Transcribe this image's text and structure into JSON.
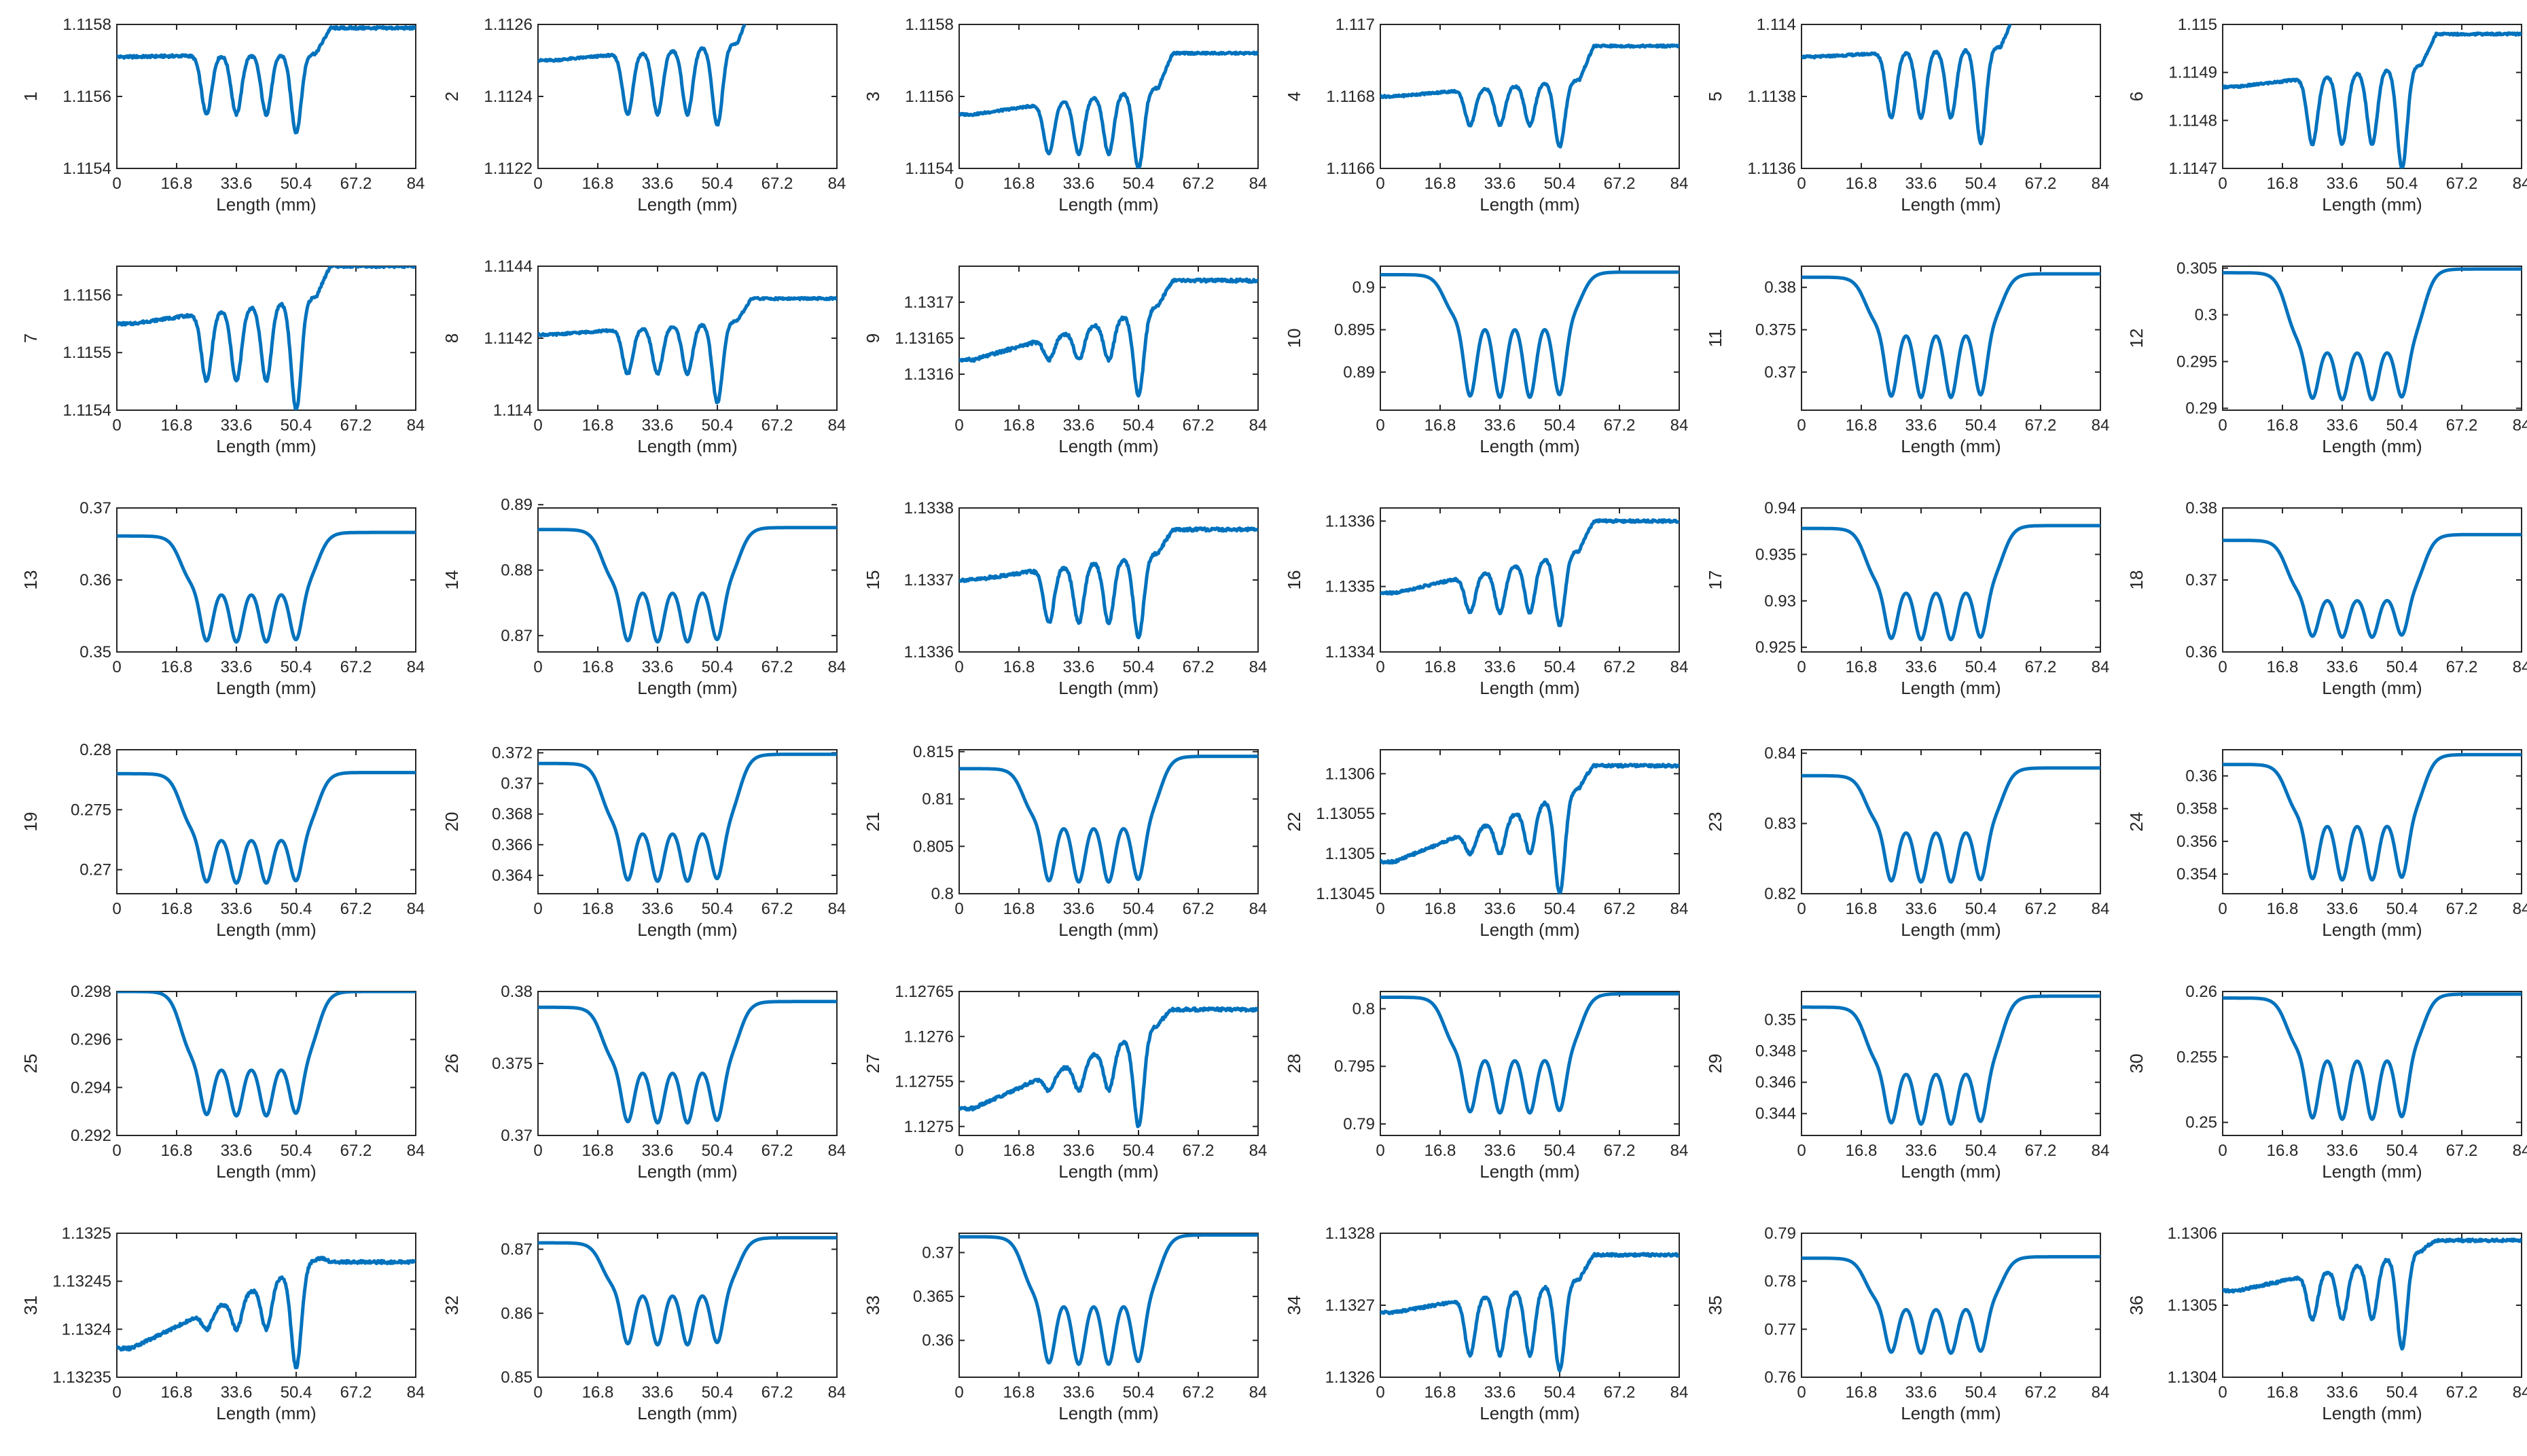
{
  "x_axis": {
    "label": "Length (mm)",
    "ticks": [
      0,
      16.8,
      33.6,
      50.4,
      67.2,
      84
    ],
    "tick_labels": [
      "0",
      "16.8",
      "33.6",
      "50.4",
      "67.2",
      "84"
    ],
    "range": [
      0,
      84
    ]
  },
  "line_color": "#0072BD",
  "chart_data": [
    {
      "type": "line",
      "ylabel": "1",
      "ylim": [
        1.1154,
        1.1158
      ],
      "yticks": [
        "1.1154",
        "1.1156",
        "1.1158"
      ],
      "baseline_left": 1.11571,
      "baseline_right": 1.11579,
      "peak_y": 1.11572,
      "trough_y": 1.11555,
      "last_trough_y": 1.1155,
      "trend": "flat",
      "noise": 0.05
    },
    {
      "type": "line",
      "ylabel": "2",
      "ylim": [
        1.1122,
        1.1126
      ],
      "yticks": [
        "1.1122",
        "1.1124",
        "1.1126"
      ],
      "baseline_left": 1.1125,
      "baseline_right": 1.11265,
      "peak_y": 1.11255,
      "trough_y": 1.11235,
      "last_trough_y": 1.11232,
      "trend": "rising",
      "noise": 0.04
    },
    {
      "type": "line",
      "ylabel": "3",
      "ylim": [
        1.1154,
        1.1158
      ],
      "yticks": [
        "1.1154",
        "1.1156",
        "1.1158"
      ],
      "baseline_left": 1.11555,
      "baseline_right": 1.11572,
      "peak_y": 1.11563,
      "trough_y": 1.11544,
      "last_trough_y": 1.1154,
      "trend": "rising",
      "noise": 0.04
    },
    {
      "type": "line",
      "ylabel": "4",
      "ylim": [
        1.1166,
        1.117
      ],
      "yticks": [
        "1.1166",
        "1.1168",
        "1.117"
      ],
      "baseline_left": 1.1168,
      "baseline_right": 1.11694,
      "peak_y": 1.11685,
      "trough_y": 1.11672,
      "last_trough_y": 1.11666,
      "trend": "rising",
      "noise": 0.04
    },
    {
      "type": "line",
      "ylabel": "5",
      "ylim": [
        1.1136,
        1.114
      ],
      "yticks": [
        "1.1136",
        "1.1138",
        "1.114"
      ],
      "baseline_left": 1.11391,
      "baseline_right": 1.11403,
      "peak_y": 1.11394,
      "trough_y": 1.11374,
      "last_trough_y": 1.11367,
      "trend": "flat",
      "noise": 0.04
    },
    {
      "type": "line",
      "ylabel": "6",
      "ylim": [
        1.1147,
        1.115
      ],
      "yticks": [
        "1.1147",
        "1.1148",
        "1.1149",
        "1.115"
      ],
      "baseline_left": 1.11487,
      "baseline_right": 1.11498,
      "peak_y": 1.11492,
      "trough_y": 1.11475,
      "last_trough_y": 1.1147,
      "trend": "flat",
      "noise": 0.04
    },
    {
      "type": "line",
      "ylabel": "7",
      "ylim": [
        1.1154,
        1.11565
      ],
      "yticks": [
        "1.1154",
        "1.1155",
        "1.1156"
      ],
      "baseline_left": 1.11555,
      "baseline_right": 1.11565,
      "peak_y": 1.1156,
      "trough_y": 1.11545,
      "last_trough_y": 1.1154,
      "trend": "rising",
      "noise": 0.05
    },
    {
      "type": "line",
      "ylabel": "8",
      "ylim": [
        1.114,
        1.1144
      ],
      "yticks": [
        "1.114",
        "1.1142",
        "1.1144"
      ],
      "baseline_left": 1.11421,
      "baseline_right": 1.11431,
      "peak_y": 1.11425,
      "trough_y": 1.1141,
      "last_trough_y": 1.11402,
      "trend": "flat",
      "noise": 0.04
    },
    {
      "type": "line",
      "ylabel": "9",
      "ylim": [
        1.13155,
        1.13175
      ],
      "yticks": [
        "1.1316",
        "1.13165",
        "1.1317"
      ],
      "baseline_left": 1.13162,
      "baseline_right": 1.13173,
      "peak_y": 1.1317,
      "trough_y": 1.13162,
      "last_trough_y": 1.13157,
      "trend": "rising",
      "noise": 0.06
    },
    {
      "type": "line",
      "ylabel": "10",
      "ylim": [
        0.8855,
        0.9025
      ],
      "yticks": [
        "0.89",
        "0.895",
        "0.9"
      ],
      "baseline_left": 0.9015,
      "baseline_right": 0.9018,
      "peak_y": 0.8945,
      "trough_y": 0.8857,
      "last_trough_y": 0.8857,
      "trend": "smooth",
      "noise": 0.005
    },
    {
      "type": "line",
      "ylabel": "11",
      "ylim": [
        0.3655,
        0.3825
      ],
      "yticks": [
        "0.37",
        "0.375",
        "0.38"
      ],
      "baseline_left": 0.3812,
      "baseline_right": 0.3816,
      "peak_y": 0.3738,
      "trough_y": 0.3658,
      "last_trough_y": 0.3658,
      "trend": "smooth",
      "noise": 0.005
    },
    {
      "type": "line",
      "ylabel": "12",
      "ylim": [
        0.2898,
        0.3052
      ],
      "yticks": [
        "0.29",
        "0.295",
        "0.3",
        "0.305"
      ],
      "baseline_left": 0.3045,
      "baseline_right": 0.3049,
      "peak_y": 0.2956,
      "trough_y": 0.2901,
      "last_trough_y": 0.2901,
      "trend": "smooth",
      "noise": 0.005
    },
    {
      "type": "line",
      "ylabel": "13",
      "ylim": [
        0.35,
        0.37
      ],
      "yticks": [
        "0.35",
        "0.36",
        "0.37"
      ],
      "baseline_left": 0.3661,
      "baseline_right": 0.3666,
      "peak_y": 0.3575,
      "trough_y": 0.3503,
      "last_trough_y": 0.3503,
      "trend": "smooth",
      "noise": 0.005
    },
    {
      "type": "line",
      "ylabel": "14",
      "ylim": [
        0.8675,
        0.8895
      ],
      "yticks": [
        "0.87",
        "0.88",
        "0.89"
      ],
      "baseline_left": 0.8862,
      "baseline_right": 0.8865,
      "peak_y": 0.876,
      "trough_y": 0.8678,
      "last_trough_y": 0.8678,
      "trend": "smooth",
      "noise": 0.005
    },
    {
      "type": "line",
      "ylabel": "15",
      "ylim": [
        1.1336,
        1.1338
      ],
      "yticks": [
        "1.1336",
        "1.1337",
        "1.1338"
      ],
      "baseline_left": 1.1337,
      "baseline_right": 1.13377,
      "peak_y": 1.13374,
      "trough_y": 1.13364,
      "last_trough_y": 1.13362,
      "trend": "rising",
      "noise": 0.06
    },
    {
      "type": "line",
      "ylabel": "16",
      "ylim": [
        1.1334,
        1.13362
      ],
      "yticks": [
        "1.1334",
        "1.1335",
        "1.1336"
      ],
      "baseline_left": 1.13349,
      "baseline_right": 1.1336,
      "peak_y": 1.13356,
      "trough_y": 1.13346,
      "last_trough_y": 1.13344,
      "trend": "rising",
      "noise": 0.05
    },
    {
      "type": "line",
      "ylabel": "17",
      "ylim": [
        0.9245,
        0.94
      ],
      "yticks": [
        "0.925",
        "0.93",
        "0.935",
        "0.94"
      ],
      "baseline_left": 0.9378,
      "baseline_right": 0.9381,
      "peak_y": 0.9305,
      "trough_y": 0.925,
      "last_trough_y": 0.925,
      "trend": "smooth",
      "noise": 0.005
    },
    {
      "type": "line",
      "ylabel": "18",
      "ylim": [
        0.36,
        0.38
      ],
      "yticks": [
        "0.36",
        "0.37",
        "0.38"
      ],
      "baseline_left": 0.3755,
      "baseline_right": 0.3763,
      "peak_y": 0.3668,
      "trough_y": 0.3612,
      "last_trough_y": 0.3612,
      "trend": "smooth",
      "noise": 0.005
    },
    {
      "type": "line",
      "ylabel": "19",
      "ylim": [
        0.268,
        0.28
      ],
      "yticks": [
        "0.27",
        "0.275",
        "0.28"
      ],
      "baseline_left": 0.278,
      "baseline_right": 0.2781,
      "peak_y": 0.2722,
      "trough_y": 0.2683,
      "last_trough_y": 0.2683,
      "trend": "smooth",
      "noise": 0.005
    },
    {
      "type": "line",
      "ylabel": "20",
      "ylim": [
        0.3628,
        0.3722
      ],
      "yticks": [
        "0.364",
        "0.366",
        "0.368",
        "0.37",
        "0.372"
      ],
      "baseline_left": 0.3713,
      "baseline_right": 0.3719,
      "peak_y": 0.3665,
      "trough_y": 0.3631,
      "last_trough_y": 0.3631,
      "trend": "smooth",
      "noise": 0.005
    },
    {
      "type": "line",
      "ylabel": "21",
      "ylim": [
        0.8,
        0.8152
      ],
      "yticks": [
        "0.8",
        "0.805",
        "0.81",
        "0.815"
      ],
      "baseline_left": 0.8132,
      "baseline_right": 0.8145,
      "peak_y": 0.8065,
      "trough_y": 0.8003,
      "last_trough_y": 0.8003,
      "trend": "smooth",
      "noise": 0.005
    },
    {
      "type": "line",
      "ylabel": "22",
      "ylim": [
        1.13045,
        1.13063
      ],
      "yticks": [
        "1.13045",
        "1.1305",
        "1.13055",
        "1.1306"
      ],
      "baseline_left": 1.13049,
      "baseline_right": 1.13061,
      "peak_y": 1.13059,
      "trough_y": 1.1305,
      "last_trough_y": 1.13045,
      "trend": "rising",
      "noise": 0.05
    },
    {
      "type": "line",
      "ylabel": "23",
      "ylim": [
        0.82,
        0.8405
      ],
      "yticks": [
        "0.82",
        "0.83",
        "0.84"
      ],
      "baseline_left": 0.8368,
      "baseline_right": 0.8379,
      "peak_y": 0.8282,
      "trough_y": 0.8205,
      "last_trough_y": 0.8205,
      "trend": "smooth",
      "noise": 0.005
    },
    {
      "type": "line",
      "ylabel": "24",
      "ylim": [
        0.3528,
        0.3616
      ],
      "yticks": [
        "0.354",
        "0.356",
        "0.358",
        "0.36"
      ],
      "baseline_left": 0.3607,
      "baseline_right": 0.3613,
      "peak_y": 0.3567,
      "trough_y": 0.3531,
      "last_trough_y": 0.3531,
      "trend": "smooth",
      "noise": 0.005
    },
    {
      "type": "line",
      "ylabel": "25",
      "ylim": [
        0.292,
        0.298
      ],
      "yticks": [
        "0.292",
        "0.294",
        "0.296",
        "0.298"
      ],
      "baseline_left": 0.298,
      "baseline_right": 0.298,
      "peak_y": 0.2946,
      "trough_y": 0.2925,
      "last_trough_y": 0.2925,
      "trend": "smooth",
      "noise": 0.005
    },
    {
      "type": "line",
      "ylabel": "26",
      "ylim": [
        0.37,
        0.38
      ],
      "yticks": [
        "0.37",
        "0.375",
        "0.38"
      ],
      "baseline_left": 0.3789,
      "baseline_right": 0.3793,
      "peak_y": 0.3741,
      "trough_y": 0.3703,
      "last_trough_y": 0.3703,
      "trend": "smooth",
      "noise": 0.005
    },
    {
      "type": "line",
      "ylabel": "27",
      "ylim": [
        1.12749,
        1.12765
      ],
      "yticks": [
        "1.1275",
        "1.12755",
        "1.1276",
        "1.12765"
      ],
      "baseline_left": 1.12752,
      "baseline_right": 1.12763,
      "peak_y": 1.12762,
      "trough_y": 1.12754,
      "last_trough_y": 1.1275,
      "trend": "rising",
      "noise": 0.06
    },
    {
      "type": "line",
      "ylabel": "28",
      "ylim": [
        0.789,
        0.8015
      ],
      "yticks": [
        "0.79",
        "0.795",
        "0.8"
      ],
      "baseline_left": 0.801,
      "baseline_right": 0.8013,
      "peak_y": 0.7952,
      "trough_y": 0.7902,
      "last_trough_y": 0.7902,
      "trend": "smooth",
      "noise": 0.005
    },
    {
      "type": "line",
      "ylabel": "29",
      "ylim": [
        0.3426,
        0.3518
      ],
      "yticks": [
        "0.344",
        "0.346",
        "0.348",
        "0.35"
      ],
      "baseline_left": 0.3508,
      "baseline_right": 0.3515,
      "peak_y": 0.3463,
      "trough_y": 0.3428,
      "last_trough_y": 0.3428,
      "trend": "smooth",
      "noise": 0.005
    },
    {
      "type": "line",
      "ylabel": "30",
      "ylim": [
        0.249,
        0.26
      ],
      "yticks": [
        "0.25",
        "0.255",
        "0.26"
      ],
      "baseline_left": 0.2595,
      "baseline_right": 0.2598,
      "peak_y": 0.2544,
      "trough_y": 0.2495,
      "last_trough_y": 0.2495,
      "trend": "smooth",
      "noise": 0.005
    },
    {
      "type": "line",
      "ylabel": "31",
      "ylim": [
        1.13235,
        1.1325
      ],
      "yticks": [
        "1.13235",
        "1.1324",
        "1.13245",
        "1.1325"
      ],
      "baseline_left": 1.13238,
      "baseline_right": 1.13247,
      "peak_y": 1.13248,
      "trough_y": 1.1324,
      "last_trough_y": 1.13236,
      "trend": "rising",
      "noise": 0.06
    },
    {
      "type": "line",
      "ylabel": "32",
      "ylim": [
        0.85,
        0.8725
      ],
      "yticks": [
        "0.85",
        "0.86",
        "0.87"
      ],
      "baseline_left": 0.871,
      "baseline_right": 0.8718,
      "peak_y": 0.8622,
      "trough_y": 0.8538,
      "last_trough_y": 0.8538,
      "trend": "smooth",
      "noise": 0.005
    },
    {
      "type": "line",
      "ylabel": "33",
      "ylim": [
        0.3558,
        0.3722
      ],
      "yticks": [
        "0.36",
        "0.365",
        "0.37"
      ],
      "baseline_left": 0.3718,
      "baseline_right": 0.372,
      "peak_y": 0.3634,
      "trough_y": 0.3562,
      "last_trough_y": 0.3562,
      "trend": "smooth",
      "noise": 0.005
    },
    {
      "type": "line",
      "ylabel": "34",
      "ylim": [
        1.1326,
        1.1328
      ],
      "yticks": [
        "1.1326",
        "1.1327",
        "1.1328"
      ],
      "baseline_left": 1.13269,
      "baseline_right": 1.13277,
      "peak_y": 1.13274,
      "trough_y": 1.13263,
      "last_trough_y": 1.13261,
      "trend": "rising",
      "noise": 0.05
    },
    {
      "type": "line",
      "ylabel": "35",
      "ylim": [
        0.76,
        0.79
      ],
      "yticks": [
        "0.76",
        "0.77",
        "0.78",
        "0.79"
      ],
      "baseline_left": 0.7848,
      "baseline_right": 0.7851,
      "peak_y": 0.7735,
      "trough_y": 0.7635,
      "last_trough_y": 0.7635,
      "trend": "smooth",
      "noise": 0.005
    },
    {
      "type": "line",
      "ylabel": "36",
      "ylim": [
        1.1304,
        1.1306
      ],
      "yticks": [
        "1.1304",
        "1.1305",
        "1.1306"
      ],
      "baseline_left": 1.13052,
      "baseline_right": 1.13059,
      "peak_y": 1.13058,
      "trough_y": 1.13048,
      "last_trough_y": 1.13044,
      "trend": "rising",
      "noise": 0.05
    }
  ]
}
